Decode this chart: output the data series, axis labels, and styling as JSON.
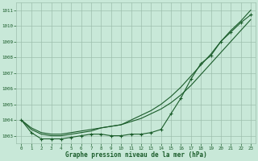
{
  "title": "Graphe pression niveau de la mer (hPa)",
  "x_labels": [
    0,
    1,
    2,
    3,
    4,
    5,
    6,
    7,
    8,
    9,
    10,
    11,
    12,
    13,
    14,
    15,
    16,
    17,
    18,
    19,
    20,
    21,
    22,
    23
  ],
  "ylim": [
    1002.5,
    1011.5
  ],
  "yticks": [
    1003,
    1004,
    1005,
    1006,
    1007,
    1008,
    1009,
    1010,
    1011
  ],
  "bg_color": "#c8e8d8",
  "grid_color": "#9dbfad",
  "line_color": "#1a5c2a",
  "line1_smooth": [
    1004.0,
    1003.5,
    1003.2,
    1003.1,
    1003.1,
    1003.2,
    1003.3,
    1003.4,
    1003.5,
    1003.6,
    1003.7,
    1003.9,
    1004.1,
    1004.4,
    1004.7,
    1005.1,
    1005.6,
    1006.2,
    1006.9,
    1007.6,
    1008.3,
    1009.0,
    1009.7,
    1010.4
  ],
  "line2_smooth": [
    1004.0,
    1003.4,
    1003.1,
    1003.0,
    1003.0,
    1003.1,
    1003.2,
    1003.3,
    1003.5,
    1003.6,
    1003.7,
    1004.0,
    1004.3,
    1004.6,
    1005.0,
    1005.5,
    1006.1,
    1006.8,
    1007.5,
    1008.2,
    1009.0,
    1009.7,
    1010.3,
    1011.0
  ],
  "line3_markers": [
    1004.0,
    1003.2,
    1002.8,
    1002.8,
    1002.8,
    1002.9,
    1003.0,
    1003.1,
    1003.1,
    1003.0,
    1003.0,
    1003.1,
    1003.1,
    1003.2,
    1003.4,
    1004.4,
    1005.4,
    1006.6,
    1007.6,
    1008.1,
    1009.0,
    1009.6,
    1010.2,
    1010.7
  ],
  "figsize": [
    3.2,
    2.0
  ],
  "dpi": 100
}
